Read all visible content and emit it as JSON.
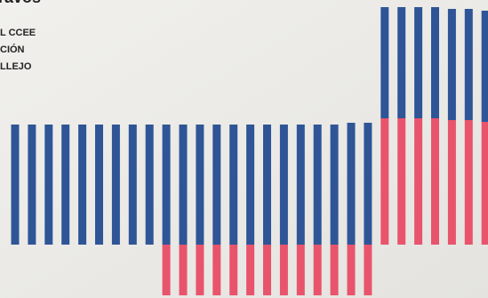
{
  "chart_data": {
    "type": "bar",
    "stacked": true,
    "title": "ravos",
    "annotations": [
      "L CCEE",
      "CIÓN",
      "LLEJO"
    ],
    "categories": [
      null,
      null,
      null,
      null,
      null,
      null,
      null,
      null,
      null,
      null,
      null,
      null,
      null,
      null,
      null,
      null,
      null,
      null,
      null,
      null,
      null,
      null,
      null,
      null,
      null,
      null,
      null,
      null,
      null
    ],
    "series": [
      {
        "color": "#e8546c",
        "values": [
          null,
          null,
          null,
          null,
          null,
          null,
          null,
          null,
          null,
          -57,
          -57,
          -57,
          -57,
          -57,
          -57,
          -57,
          -57,
          -57,
          -57,
          -57,
          -57,
          -57,
          142,
          142,
          142,
          142,
          140,
          140,
          138
        ]
      },
      {
        "color": "#2f5597",
        "values": [
          135,
          135,
          135,
          135,
          135,
          135,
          135,
          135,
          135,
          135,
          135,
          135,
          135,
          135,
          135,
          135,
          135,
          135,
          135,
          135,
          137,
          137,
          125,
          125,
          125,
          125,
          125,
          125,
          125
        ]
      }
    ],
    "ylim": [
      -60,
      275
    ]
  }
}
